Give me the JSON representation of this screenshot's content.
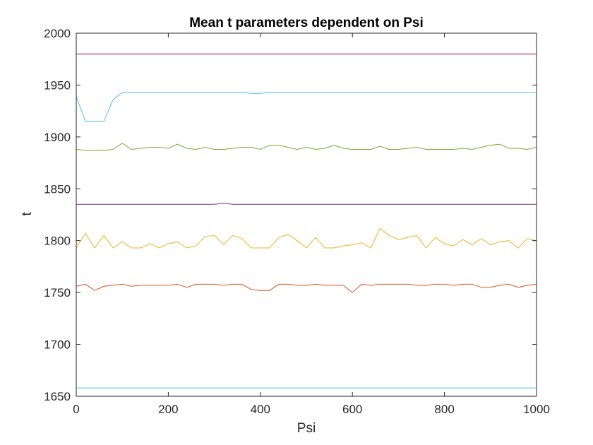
{
  "chart_data": {
    "type": "line",
    "title": "Mean t parameters dependent on Psi",
    "xlabel": "Psi",
    "ylabel": "t",
    "xlim": [
      0,
      1000
    ],
    "ylim": [
      1650,
      2000
    ],
    "xticks": [
      0,
      200,
      400,
      600,
      800,
      1000
    ],
    "yticks": [
      1650,
      1700,
      1750,
      1800,
      1850,
      1900,
      1950,
      2000
    ],
    "grid": false,
    "x": [
      0,
      20,
      40,
      60,
      80,
      100,
      120,
      140,
      160,
      180,
      200,
      220,
      240,
      260,
      280,
      300,
      320,
      340,
      360,
      380,
      400,
      420,
      440,
      460,
      480,
      500,
      520,
      540,
      560,
      580,
      600,
      620,
      640,
      660,
      680,
      700,
      720,
      740,
      760,
      780,
      800,
      820,
      840,
      860,
      880,
      900,
      920,
      940,
      960,
      980,
      1000
    ],
    "series": [
      {
        "color": "#4dbeee",
        "values": [
          1658,
          1658,
          1658,
          1658,
          1658,
          1658,
          1658,
          1658,
          1658,
          1658,
          1658,
          1658,
          1658,
          1658,
          1658,
          1658,
          1658,
          1658,
          1658,
          1658,
          1658,
          1658,
          1658,
          1658,
          1658,
          1658,
          1658,
          1658,
          1658,
          1658,
          1658,
          1658,
          1658,
          1658,
          1658,
          1658,
          1658,
          1658,
          1658,
          1658,
          1658,
          1658,
          1658,
          1658,
          1658,
          1658,
          1658,
          1658,
          1658,
          1658,
          1658
        ]
      },
      {
        "color": "#d95319",
        "values": [
          1756,
          1758,
          1752,
          1756,
          1757,
          1758,
          1756,
          1757,
          1757,
          1757,
          1757,
          1758,
          1755,
          1758,
          1758,
          1758,
          1757,
          1758,
          1758,
          1753,
          1752,
          1752,
          1758,
          1758,
          1757,
          1757,
          1758,
          1757,
          1757,
          1757,
          1750,
          1758,
          1757,
          1758,
          1758,
          1758,
          1758,
          1757,
          1757,
          1758,
          1758,
          1757,
          1758,
          1758,
          1755,
          1755,
          1757,
          1758,
          1755,
          1757,
          1758
        ]
      },
      {
        "color": "#edb120",
        "values": [
          1793,
          1807,
          1793,
          1805,
          1793,
          1799,
          1793,
          1793,
          1797,
          1793,
          1797,
          1799,
          1793,
          1795,
          1804,
          1805,
          1796,
          1805,
          1802,
          1793,
          1793,
          1793,
          1803,
          1806,
          1800,
          1793,
          1803,
          1793,
          1793,
          1795,
          1796,
          1798,
          1793,
          1812,
          1805,
          1801,
          1803,
          1805,
          1793,
          1803,
          1797,
          1795,
          1801,
          1796,
          1802,
          1796,
          1799,
          1800,
          1793,
          1802,
          1800
        ]
      },
      {
        "color": "#7e2f8e",
        "values": [
          1835,
          1835,
          1835,
          1835,
          1835,
          1835,
          1835,
          1835,
          1835,
          1835,
          1835,
          1835,
          1835,
          1835,
          1835,
          1835,
          1836,
          1835,
          1835,
          1835,
          1835,
          1835,
          1835,
          1835,
          1835,
          1835,
          1835,
          1835,
          1835,
          1835,
          1835,
          1835,
          1835,
          1835,
          1835,
          1835,
          1835,
          1835,
          1835,
          1835,
          1835,
          1835,
          1835,
          1835,
          1835,
          1835,
          1835,
          1835,
          1835,
          1835,
          1835
        ]
      },
      {
        "color": "#77ac30",
        "values": [
          1888,
          1887,
          1887,
          1887,
          1888,
          1894,
          1888,
          1889,
          1890,
          1890,
          1889,
          1893,
          1889,
          1888,
          1890,
          1888,
          1888,
          1889,
          1890,
          1890,
          1888,
          1892,
          1892,
          1890,
          1888,
          1890,
          1888,
          1889,
          1892,
          1889,
          1888,
          1888,
          1888,
          1891,
          1888,
          1888,
          1889,
          1890,
          1888,
          1888,
          1888,
          1888,
          1889,
          1888,
          1890,
          1892,
          1893,
          1889,
          1889,
          1888,
          1890
        ]
      },
      {
        "color": "#4dbeee",
        "values": [
          1939,
          1915,
          1915,
          1915,
          1936,
          1943,
          1943,
          1943,
          1943,
          1943,
          1943,
          1943,
          1943,
          1943,
          1943,
          1943,
          1943,
          1943,
          1943,
          1942,
          1942,
          1943,
          1943,
          1943,
          1943,
          1943,
          1943,
          1943,
          1943,
          1943,
          1943,
          1943,
          1943,
          1943,
          1943,
          1943,
          1943,
          1943,
          1943,
          1943,
          1943,
          1943,
          1943,
          1943,
          1943,
          1943,
          1943,
          1943,
          1943,
          1943,
          1943
        ]
      },
      {
        "color": "#a2142f",
        "values": [
          1980,
          1980,
          1980,
          1980,
          1980,
          1980,
          1980,
          1980,
          1980,
          1980,
          1980,
          1980,
          1980,
          1980,
          1980,
          1980,
          1980,
          1980,
          1980,
          1980,
          1980,
          1980,
          1980,
          1980,
          1980,
          1980,
          1980,
          1980,
          1980,
          1980,
          1980,
          1980,
          1980,
          1980,
          1980,
          1980,
          1980,
          1980,
          1980,
          1980,
          1980,
          1980,
          1980,
          1980,
          1980,
          1980,
          1980,
          1980,
          1980,
          1980,
          1980
        ]
      }
    ]
  }
}
